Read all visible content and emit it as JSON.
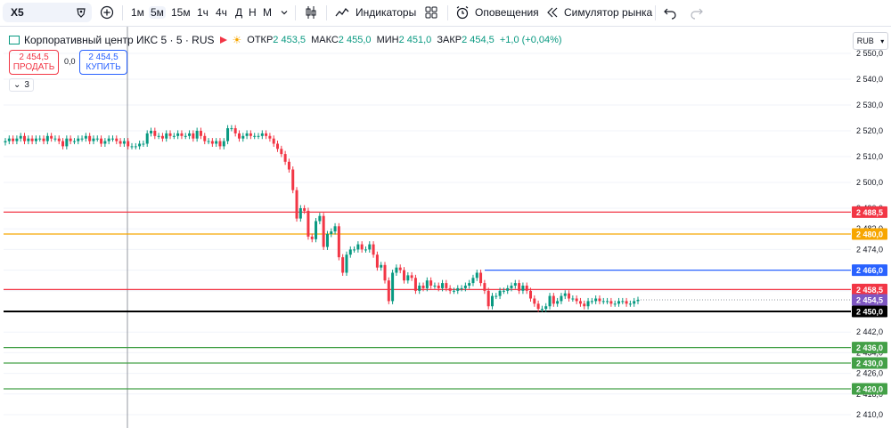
{
  "toolbar": {
    "symbol": "X5",
    "intervals": [
      "1м",
      "5м",
      "15м",
      "1ч",
      "4ч",
      "Д",
      "Н",
      "М"
    ],
    "active_interval": "5м",
    "indicators_label": "Индикаторы",
    "alerts_label": "Оповещения",
    "simulator_label": "Симулятор рынка"
  },
  "legend": {
    "title": "Корпоративный центр ИКС 5 · 5 · RUS",
    "open_label": "ОТКР",
    "open": "2 453,5",
    "high_label": "МАКС",
    "high": "2 455,0",
    "low_label": "МИН",
    "low": "2 451,0",
    "close_label": "ЗАКР",
    "close": "2 454,5",
    "change": "+1,0 (+0,04%)"
  },
  "trade": {
    "sell_price": "2 454,5",
    "sell_label": "ПРОДАТЬ",
    "spread": "0,0",
    "buy_price": "2 454,5",
    "buy_label": "КУПИТЬ",
    "collapse_count": "3"
  },
  "currency": "RUB",
  "colors": {
    "up": "#089981",
    "down": "#f23645",
    "accent": "#2962ff"
  },
  "chart_data": {
    "type": "candlestick",
    "ylim": [
      2407,
      2555
    ],
    "y_ticks": [
      2410,
      2418,
      2426,
      2434,
      2442,
      2450,
      2458,
      2466,
      2474,
      2482,
      2490,
      2500,
      2510,
      2520,
      2530,
      2540,
      2550
    ],
    "y_tick_labels": [
      "2 410,0",
      "2 418,0",
      "2 426,0",
      "2 434,0",
      "2 442,0",
      "2 450,0",
      "2 458,0",
      "2 466,0",
      "2 474,0",
      "2 482,0",
      "2 490,0",
      "2 500,0",
      "2 510,0",
      "2 520,0",
      "2 530,0",
      "2 540,0",
      "2 550,0"
    ],
    "levels": [
      {
        "value": 2488.5,
        "label": "2 488,5",
        "color": "#f23645",
        "full": true
      },
      {
        "value": 2480.0,
        "label": "2 480,0",
        "color": "#f7a600",
        "full": true
      },
      {
        "value": 2466.0,
        "label": "2 466,0",
        "color": "#2962ff",
        "full": false
      },
      {
        "value": 2458.5,
        "label": "2 458,5",
        "color": "#f23645",
        "full": true
      },
      {
        "value": 2454.5,
        "label": "2 454,5",
        "color": "#7e57c2",
        "full": false,
        "dotted": true
      },
      {
        "value": 2450.0,
        "label": "2 450,0",
        "color": "#000000",
        "full": true
      },
      {
        "value": 2436.0,
        "label": "2 436,0",
        "color": "#43a047",
        "full": true
      },
      {
        "value": 2430.0,
        "label": "2 430,0",
        "color": "#43a047",
        "full": true
      },
      {
        "value": 2420.0,
        "label": "2 420,0",
        "color": "#43a047",
        "full": true
      }
    ],
    "close_path": [
      2516,
      2517,
      2516,
      2517,
      2518,
      2516,
      2517,
      2516,
      2517,
      2517,
      2516,
      2518,
      2517,
      2517,
      2516,
      2514,
      2517,
      2516,
      2516,
      2517,
      2517,
      2518,
      2516,
      2517,
      2517,
      2515,
      2516,
      2517,
      2517,
      2516,
      2515,
      2516,
      2514,
      2514,
      2514,
      2515,
      2515,
      2519,
      2520,
      2518,
      2518,
      2517,
      2519,
      2518,
      2518,
      2519,
      2518,
      2518,
      2519,
      2517,
      2520,
      2518,
      2516,
      2516,
      2515,
      2516,
      2514,
      2516,
      2521,
      2521,
      2519,
      2517,
      2518,
      2519,
      2518,
      2518,
      2518,
      2519,
      2518,
      2517,
      2515,
      2513,
      2511,
      2508,
      2505,
      2497,
      2486,
      2490,
      2489,
      2479,
      2478,
      2485,
      2487,
      2475,
      2480,
      2481,
      2483,
      2471,
      2465,
      2472,
      2474,
      2474,
      2476,
      2474,
      2474,
      2476,
      2472,
      2467,
      2468,
      2462,
      2454,
      2465,
      2467,
      2466,
      2462,
      2464,
      2463,
      2458,
      2460,
      2459,
      2462,
      2460,
      2460,
      2459,
      2461,
      2459,
      2458,
      2458,
      2459,
      2459,
      2460,
      2461,
      2463,
      2465,
      2461,
      2458,
      2452,
      2456,
      2456,
      2458,
      2458,
      2459,
      2460,
      2461,
      2458,
      2460,
      2458,
      2455,
      2453,
      2451,
      2451,
      2452,
      2456,
      2453,
      2454,
      2456,
      2457,
      2455,
      2455,
      2454,
      2453,
      2452,
      2454,
      2454,
      2455,
      2454,
      2454,
      2454,
      2453,
      2453,
      2454,
      2454,
      2453,
      2453,
      2454,
      2454.5
    ]
  }
}
